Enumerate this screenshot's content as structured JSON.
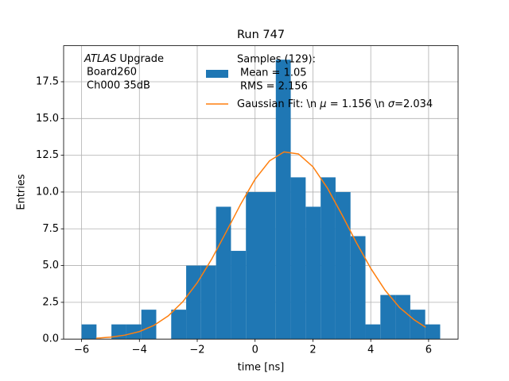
{
  "chart_data": {
    "type": "histogram",
    "title": "Run 747",
    "xlabel": "time [ns]",
    "ylabel": "Entries",
    "annotation": {
      "italic": "ATLAS",
      "lines": [
        "Upgrade",
        "Board260",
        "Ch000 35dB"
      ]
    },
    "name": [
      "Samples (129):",
      "Mean = 1.05",
      "RMS = 2.156"
    ],
    "color": "#1f77b4",
    "bins": [
      -6,
      -5.483,
      -4.967,
      -4.45,
      -3.933,
      -3.417,
      -2.9,
      -2.383,
      -1.867,
      -1.35,
      -0.833,
      -0.317,
      0.2,
      0.717,
      1.233,
      1.75,
      2.267,
      2.783,
      3.3,
      3.817,
      4.333,
      4.85,
      5.367,
      5.883,
      6.4
    ],
    "values": [
      1,
      0,
      1,
      1,
      2,
      0,
      2,
      5,
      5,
      9,
      6,
      10,
      10,
      19,
      11,
      9,
      11,
      10,
      7,
      1,
      3,
      3,
      2,
      1
    ],
    "fit": {
      "type": "line",
      "name": [
        "Gaussian Fit: \\n ",
        "μ",
        " = 1.156 \\n ",
        "σ",
        "=2.034"
      ],
      "color": "#ff7f0e",
      "x": [
        -5.5,
        -5,
        -4.5,
        -4,
        -3.5,
        -3,
        -2.5,
        -2,
        -1.5,
        -1,
        -0.5,
        0,
        0.5,
        1,
        1.5,
        2,
        2.5,
        3,
        3.5,
        4,
        4.5,
        5,
        5.5,
        5.9
      ],
      "values": [
        0.06,
        0.13,
        0.27,
        0.51,
        0.93,
        1.58,
        2.54,
        3.83,
        5.44,
        7.28,
        9.17,
        10.87,
        12.12,
        12.73,
        12.59,
        11.72,
        10.27,
        8.47,
        6.57,
        4.81,
        3.31,
        2.14,
        1.31,
        0.8
      ]
    },
    "xlim": [
      -6.62,
      7.02
    ],
    "ylim": [
      0,
      19.95
    ],
    "xticks": [
      {
        "value": -6,
        "label": "−6"
      },
      {
        "value": -4,
        "label": "−4"
      },
      {
        "value": -2,
        "label": "−2"
      },
      0,
      2,
      4,
      6
    ],
    "yticks": [
      {
        "value": 0,
        "label": "0.0"
      },
      2.5,
      {
        "value": 5,
        "label": "5.0"
      },
      7.5,
      {
        "value": 10,
        "label": "10.0"
      },
      12.5,
      {
        "value": 15,
        "label": "15.0"
      },
      17.5
    ],
    "grid": true
  }
}
